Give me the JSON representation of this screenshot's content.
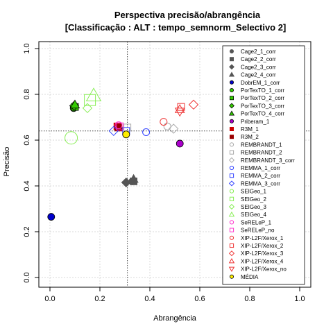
{
  "chart_data": {
    "type": "scatter",
    "title": "Perspectiva precisão/abrangência",
    "subtitle": "[Classificação : ALT : tempo_semnorm_Selectivo 2]",
    "xlabel": "Abrangência",
    "ylabel": "Precisão",
    "xlim": [
      0,
      1
    ],
    "ylim": [
      0,
      1
    ],
    "xticks": [
      "0.0",
      "0.2",
      "0.4",
      "0.6",
      "0.8",
      "1.0"
    ],
    "yticks": [
      "0.0",
      "0.2",
      "0.4",
      "0.6",
      "0.8",
      "1.0"
    ],
    "grid": true,
    "legend_position": "right",
    "reference_lines": {
      "x": 0.31,
      "y": 0.64
    },
    "series": [
      {
        "name": "Cage2_1_corr",
        "color": "#555555",
        "shape": "circle",
        "fill": true,
        "size": 5,
        "points": [
          [
            0.33,
            0.42
          ]
        ]
      },
      {
        "name": "Cage2_2_corr",
        "color": "#555555",
        "shape": "square",
        "fill": true,
        "size": 5,
        "points": [
          [
            0.335,
            0.42
          ]
        ]
      },
      {
        "name": "Cage2_3_corr",
        "color": "#555555",
        "shape": "diamond",
        "fill": true,
        "size": 5,
        "points": [
          [
            0.305,
            0.415
          ]
        ]
      },
      {
        "name": "Cage2_4_corr",
        "color": "#555555",
        "shape": "triangle",
        "fill": true,
        "size": 5,
        "points": [
          [
            0.335,
            0.43
          ]
        ]
      },
      {
        "name": "DobrEM_1_corr",
        "color": "#0000cc",
        "shape": "circle",
        "fill": true,
        "size": 5,
        "points": [
          [
            0.005,
            0.265
          ]
        ]
      },
      {
        "name": "PorTexTO_1_corr",
        "color": "#33cc00",
        "shape": "circle",
        "fill": true,
        "size": 5,
        "points": [
          [
            0.095,
            0.74
          ]
        ]
      },
      {
        "name": "PorTexTO_2_corr",
        "color": "#33cc00",
        "shape": "square",
        "fill": true,
        "size": 5,
        "points": [
          [
            0.1,
            0.745
          ]
        ]
      },
      {
        "name": "PorTexTO_3_corr",
        "color": "#33cc00",
        "shape": "diamond",
        "fill": true,
        "size": 5,
        "points": [
          [
            0.097,
            0.75
          ]
        ]
      },
      {
        "name": "PorTexTO_4_corr",
        "color": "#33cc00",
        "shape": "triangle",
        "fill": true,
        "size": 5,
        "points": [
          [
            0.1,
            0.755
          ]
        ]
      },
      {
        "name": "Priberam_1",
        "color": "#aa00cc",
        "shape": "circle",
        "fill": true,
        "size": 5,
        "points": [
          [
            0.52,
            0.585
          ]
        ]
      },
      {
        "name": "R3M_1",
        "color": "#cc0000",
        "shape": "square",
        "fill": true,
        "size": 5,
        "points": [
          [
            0.27,
            0.66
          ]
        ]
      },
      {
        "name": "R3M_2",
        "color": "#990000",
        "shape": "square",
        "fill": true,
        "size": 5,
        "points": [
          [
            0.275,
            0.655
          ]
        ]
      },
      {
        "name": "REMBRANDT_1",
        "color": "#aaaaaa",
        "shape": "circle",
        "fill": false,
        "size": 5,
        "points": [
          [
            0.47,
            0.66
          ]
        ]
      },
      {
        "name": "REMBRANDT_2",
        "color": "#aaaaaa",
        "shape": "square",
        "fill": false,
        "size": 5,
        "points": [
          [
            0.31,
            0.655
          ]
        ]
      },
      {
        "name": "REMBRANDT_3_corr",
        "color": "#aaaaaa",
        "shape": "diamond",
        "fill": false,
        "size": 5,
        "points": [
          [
            0.495,
            0.65
          ]
        ]
      },
      {
        "name": "REMMA_1_corr",
        "color": "#3344ff",
        "shape": "circle",
        "fill": false,
        "size": 5,
        "points": [
          [
            0.385,
            0.635
          ]
        ]
      },
      {
        "name": "REMMA_2_corr",
        "color": "#3344ff",
        "shape": "square",
        "fill": false,
        "size": 5,
        "points": [
          [
            0.305,
            0.64
          ]
        ]
      },
      {
        "name": "REMMA_3_corr",
        "color": "#3344ff",
        "shape": "diamond",
        "fill": false,
        "size": 5,
        "points": [
          [
            0.255,
            0.64
          ]
        ]
      },
      {
        "name": "SEIGeo_1",
        "color": "#88ee55",
        "shape": "circle",
        "fill": false,
        "size": 9,
        "points": [
          [
            0.085,
            0.61
          ]
        ]
      },
      {
        "name": "SEIGeo_2",
        "color": "#88ee55",
        "shape": "square",
        "fill": false,
        "size": 8,
        "points": [
          [
            0.16,
            0.775
          ]
        ]
      },
      {
        "name": "SEIGeo_3",
        "color": "#88ee55",
        "shape": "diamond",
        "fill": false,
        "size": 5,
        "points": [
          [
            0.15,
            0.74
          ]
        ]
      },
      {
        "name": "SEIGeo_4",
        "color": "#88ee55",
        "shape": "triangle",
        "fill": false,
        "size": 8,
        "points": [
          [
            0.175,
            0.795
          ]
        ]
      },
      {
        "name": "SeRELeP_1",
        "color": "#ff33cc",
        "shape": "circle",
        "fill": false,
        "size": 5,
        "points": [
          [
            0.275,
            0.665
          ]
        ]
      },
      {
        "name": "SeRELeP_no",
        "color": "#ff33cc",
        "shape": "square",
        "fill": false,
        "size": 5,
        "points": [
          [
            0.28,
            0.66
          ]
        ]
      },
      {
        "name": "XIP-L2F/Xerox_1",
        "color": "#ee3333",
        "shape": "circle",
        "fill": false,
        "size": 5,
        "points": [
          [
            0.455,
            0.68
          ]
        ]
      },
      {
        "name": "XIP-L2F/Xerox_2",
        "color": "#ee3333",
        "shape": "square",
        "fill": false,
        "size": 5,
        "points": [
          [
            0.525,
            0.745
          ]
        ]
      },
      {
        "name": "XIP-L2F/Xerox_3",
        "color": "#ee3333",
        "shape": "diamond",
        "fill": false,
        "size": 5,
        "points": [
          [
            0.575,
            0.755
          ]
        ]
      },
      {
        "name": "XIP-L2F/Xerox_4",
        "color": "#ee3333",
        "shape": "triangle",
        "fill": false,
        "size": 5,
        "points": [
          [
            0.52,
            0.735
          ]
        ]
      },
      {
        "name": "XIP-L2F/Xerox_no",
        "color": "#ee3333",
        "shape": "triangle-down",
        "fill": false,
        "size": 5,
        "points": [
          [
            0.52,
            0.725
          ]
        ]
      },
      {
        "name": "MÉDIA",
        "color": "#ffee00",
        "shape": "circle",
        "fill": true,
        "size": 5,
        "points": [
          [
            0.305,
            0.625
          ]
        ]
      }
    ]
  }
}
